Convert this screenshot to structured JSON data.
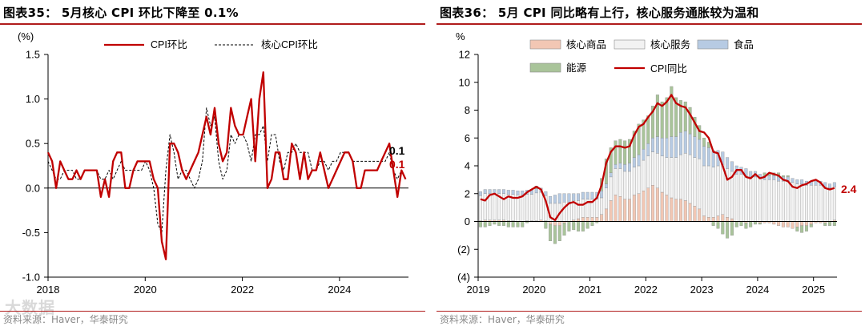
{
  "watermark": "大数据",
  "left": {
    "title": "图表35： 5月核心 CPI 环比下降至 0.1%",
    "source": "资料来源：Haver，华泰研究",
    "chart_data": {
      "type": "line",
      "ylabel": "(%)",
      "ylim": [
        -1.0,
        1.5
      ],
      "yticks": [
        -1.0,
        -0.5,
        0.0,
        0.5,
        1.0,
        1.5
      ],
      "ytick_labels": [
        "-1.0",
        "-0.5",
        "0.0",
        "0.5",
        "1.0",
        "1.5"
      ],
      "xlim": [
        2018.0,
        2025.42
      ],
      "xticks": [
        2018,
        2020,
        2022,
        2024
      ],
      "xtick_labels": [
        "2018",
        "2020",
        "2022",
        "2024"
      ],
      "legend": [
        "CPI环比",
        "核心CPI环比"
      ],
      "series": [
        {
          "name": "CPI环比",
          "color": "#c00000",
          "style": "solid",
          "values": [
            0.4,
            0.3,
            0.0,
            0.3,
            0.2,
            0.1,
            0.1,
            0.2,
            0.1,
            0.2,
            0.2,
            0.2,
            0.2,
            -0.1,
            0.1,
            -0.1,
            0.3,
            0.4,
            0.4,
            0.0,
            0.0,
            0.2,
            0.3,
            0.3,
            0.3,
            0.3,
            0.1,
            0.0,
            -0.6,
            -0.8,
            0.5,
            0.5,
            0.4,
            0.2,
            0.1,
            0.2,
            0.3,
            0.4,
            0.6,
            0.8,
            0.6,
            0.9,
            0.5,
            0.3,
            0.4,
            0.9,
            0.7,
            0.6,
            0.6,
            0.8,
            1.0,
            0.3,
            1.0,
            1.3,
            0.0,
            0.1,
            0.4,
            0.4,
            0.1,
            0.1,
            0.5,
            0.4,
            0.1,
            0.4,
            0.1,
            0.2,
            0.2,
            0.4,
            0.2,
            0.0,
            0.1,
            0.2,
            0.3,
            0.4,
            0.4,
            0.3,
            0.0,
            0.0,
            0.2,
            0.2,
            0.2,
            0.2,
            0.3,
            0.4,
            0.5,
            0.2,
            -0.1,
            0.2,
            0.1
          ]
        },
        {
          "name": "核心CPI环比",
          "color": "#000000",
          "style": "dashed",
          "values": [
            0.3,
            0.2,
            0.1,
            0.1,
            0.2,
            0.2,
            0.2,
            0.1,
            0.1,
            0.2,
            0.2,
            0.2,
            0.2,
            0.1,
            0.1,
            0.2,
            0.1,
            0.2,
            0.3,
            0.2,
            0.2,
            0.2,
            0.2,
            0.2,
            0.3,
            0.2,
            0.0,
            -0.4,
            -0.5,
            0.2,
            0.6,
            0.4,
            0.1,
            0.2,
            0.2,
            0.1,
            0.0,
            0.1,
            0.3,
            0.9,
            0.7,
            0.8,
            0.3,
            0.1,
            0.2,
            0.6,
            0.5,
            0.6,
            0.6,
            0.5,
            0.3,
            0.6,
            0.6,
            0.7,
            0.3,
            0.6,
            0.6,
            0.3,
            0.2,
            0.4,
            0.4,
            0.5,
            0.4,
            0.4,
            0.4,
            0.2,
            0.2,
            0.3,
            0.3,
            0.2,
            0.3,
            0.3,
            0.4,
            0.4,
            0.4,
            0.3,
            0.3,
            0.3,
            0.3,
            0.3,
            0.3,
            0.3,
            0.3,
            0.3,
            0.4,
            0.2,
            0.1,
            0.2,
            0.1
          ]
        }
      ],
      "annotations": [
        {
          "text": "0.1",
          "color": "#000000",
          "series": "核心CPI环比"
        },
        {
          "text": "0.1",
          "color": "#c00000",
          "series": "CPI环比"
        }
      ]
    }
  },
  "right": {
    "title": "图表36： 5月 CPI 同比略有上行，核心服务通胀较为温和",
    "source": "资料来源：Haver，华泰研究",
    "chart_data": {
      "type": "bar",
      "stacked": true,
      "ylabel": "%",
      "ylim": [
        -4,
        12
      ],
      "yticks": [
        -4,
        -2,
        0,
        2,
        4,
        6,
        8,
        10,
        12
      ],
      "ytick_labels": [
        "(4)",
        "(2)",
        "0",
        "2",
        "4",
        "6",
        "8",
        "10",
        "12"
      ],
      "xlim": [
        2019.0,
        2025.42
      ],
      "xticks": [
        2019,
        2020,
        2021,
        2022,
        2023,
        2024,
        2025
      ],
      "xtick_labels": [
        "2019",
        "2020",
        "2021",
        "2022",
        "2023",
        "2024",
        "2025"
      ],
      "legend": [
        "核心商品",
        "核心服务",
        "食品",
        "能源",
        "CPI同比"
      ],
      "colors": {
        "核心商品": "#f2c7b4",
        "核心服务": "#f2f2f2",
        "食品": "#b7cbe3",
        "能源": "#a9c49a",
        "CPI同比": "#c00000"
      },
      "cpi_yoy": [
        1.6,
        1.5,
        1.9,
        2.0,
        1.8,
        1.6,
        1.8,
        1.7,
        1.7,
        1.8,
        2.1,
        2.3,
        2.5,
        2.3,
        1.5,
        0.3,
        0.1,
        0.6,
        1.0,
        1.3,
        1.4,
        1.2,
        1.2,
        1.4,
        1.4,
        1.7,
        2.6,
        4.2,
        5.0,
        5.4,
        5.4,
        5.3,
        5.4,
        6.2,
        6.8,
        7.0,
        7.5,
        7.9,
        8.5,
        8.3,
        8.6,
        9.1,
        8.5,
        8.3,
        8.2,
        7.7,
        7.1,
        6.5,
        6.4,
        6.0,
        5.0,
        4.9,
        4.0,
        3.0,
        3.2,
        3.7,
        3.7,
        3.2,
        3.1,
        3.4,
        3.1,
        3.2,
        3.5,
        3.4,
        3.3,
        3.0,
        2.9,
        2.5,
        2.4,
        2.6,
        2.7,
        2.9,
        3.0,
        2.8,
        2.4,
        2.3,
        2.4
      ],
      "core_goods": [
        0.05,
        0.1,
        0.1,
        0.1,
        0.1,
        0.1,
        0.05,
        0.05,
        0.0,
        0.0,
        0.05,
        0.05,
        0.05,
        0.1,
        0.05,
        -0.2,
        -0.3,
        -0.3,
        -0.1,
        0.0,
        0.1,
        0.2,
        0.3,
        0.3,
        0.3,
        0.3,
        0.5,
        0.9,
        1.5,
        1.9,
        1.8,
        1.6,
        1.6,
        1.9,
        2.0,
        2.2,
        2.4,
        2.6,
        2.4,
        2.1,
        1.9,
        1.7,
        1.6,
        1.6,
        1.5,
        1.3,
        1.1,
        0.9,
        0.4,
        0.3,
        0.3,
        0.4,
        0.5,
        0.3,
        0.2,
        0.0,
        0.0,
        -0.1,
        0.0,
        0.0,
        -0.1,
        -0.1,
        -0.1,
        -0.2,
        -0.3,
        -0.4,
        -0.4,
        -0.5,
        -0.4,
        -0.3,
        -0.3,
        -0.2,
        -0.1,
        -0.1,
        -0.1,
        0.0,
        0.1
      ],
      "core_services": [
        1.8,
        1.9,
        1.9,
        1.9,
        1.9,
        1.9,
        1.9,
        1.9,
        1.9,
        1.9,
        1.9,
        1.9,
        2.0,
        2.0,
        1.8,
        1.3,
        1.3,
        1.3,
        1.4,
        1.4,
        1.4,
        1.3,
        1.3,
        1.3,
        1.3,
        1.3,
        1.2,
        1.5,
        1.7,
        1.9,
        2.0,
        2.0,
        2.0,
        2.0,
        2.0,
        2.2,
        2.3,
        2.4,
        2.5,
        2.6,
        2.7,
        2.9,
        3.0,
        3.2,
        3.4,
        3.5,
        3.5,
        3.6,
        3.6,
        3.7,
        3.6,
        3.6,
        3.6,
        3.5,
        3.4,
        3.4,
        3.4,
        3.3,
        3.2,
        3.2,
        3.1,
        3.0,
        3.0,
        3.0,
        2.9,
        2.9,
        2.9,
        2.8,
        2.7,
        2.7,
        2.6,
        2.6,
        2.6,
        2.6,
        2.5,
        2.4,
        2.4
      ],
      "food": [
        0.3,
        0.3,
        0.3,
        0.3,
        0.3,
        0.3,
        0.3,
        0.3,
        0.3,
        0.3,
        0.3,
        0.3,
        0.3,
        0.3,
        0.3,
        0.5,
        0.6,
        0.7,
        0.6,
        0.6,
        0.5,
        0.5,
        0.5,
        0.5,
        0.5,
        0.5,
        0.5,
        0.3,
        0.3,
        0.3,
        0.4,
        0.5,
        0.6,
        0.7,
        0.8,
        0.8,
        0.9,
        1.0,
        1.2,
        1.3,
        1.4,
        1.5,
        1.5,
        1.6,
        1.6,
        1.5,
        1.5,
        1.4,
        1.4,
        1.3,
        1.2,
        1.1,
        0.9,
        0.8,
        0.7,
        0.6,
        0.5,
        0.5,
        0.4,
        0.4,
        0.3,
        0.3,
        0.3,
        0.3,
        0.3,
        0.3,
        0.3,
        0.3,
        0.3,
        0.3,
        0.3,
        0.3,
        0.3,
        0.3,
        0.3,
        0.3,
        0.3
      ],
      "energy": [
        -0.4,
        -0.4,
        -0.3,
        -0.2,
        -0.3,
        -0.3,
        -0.4,
        -0.4,
        -0.4,
        -0.4,
        -0.1,
        0.0,
        0.2,
        0.0,
        -0.5,
        -1.2,
        -1.3,
        -1.1,
        -0.9,
        -0.7,
        -0.6,
        -0.7,
        -0.7,
        -0.5,
        -0.3,
        -0.1,
        0.9,
        1.8,
        1.8,
        1.7,
        1.7,
        1.7,
        1.7,
        1.9,
        2.2,
        2.1,
        2.0,
        2.3,
        3.0,
        2.6,
        2.9,
        3.6,
        2.8,
        2.3,
        2.1,
        1.9,
        1.4,
        1.0,
        0.6,
        0.4,
        -0.3,
        -0.5,
        -0.9,
        -1.2,
        -1.0,
        -0.4,
        -0.3,
        -0.4,
        -0.4,
        -0.2,
        -0.1,
        0.2,
        0.2,
        0.2,
        0.3,
        0.1,
        0.1,
        0.0,
        -0.3,
        -0.5,
        -0.4,
        -0.2,
        0.0,
        0.0,
        -0.2,
        -0.3,
        -0.3
      ],
      "annotations": [
        {
          "text": "2.4",
          "color": "#c00000",
          "series": "CPI同比"
        }
      ]
    }
  }
}
